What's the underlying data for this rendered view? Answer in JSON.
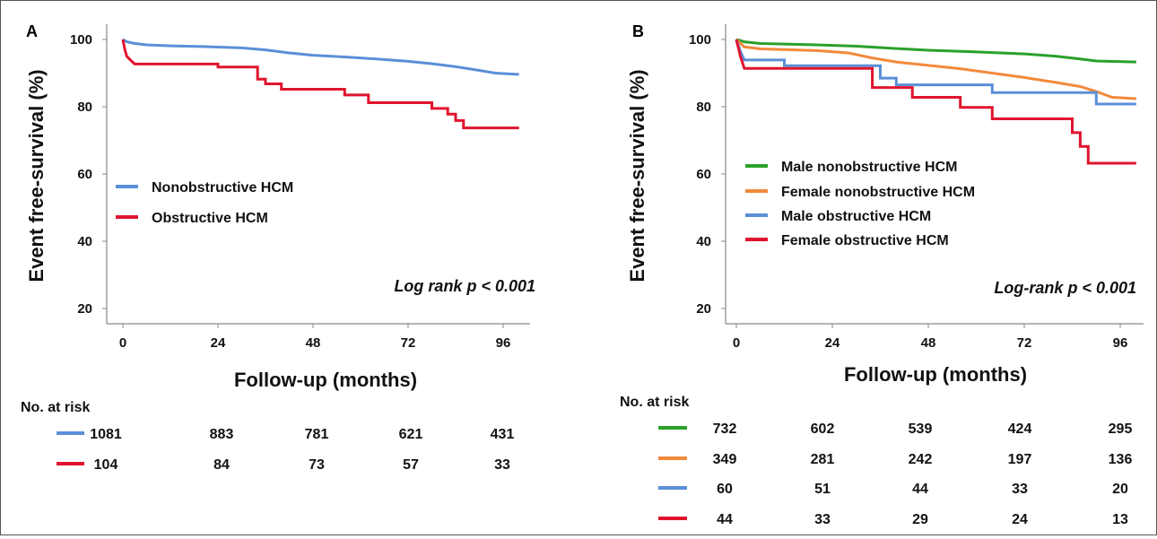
{
  "chart_data": [
    {
      "type": "line",
      "step": true,
      "panel": "A",
      "ylabel": "Event free-survival (%)",
      "xlabel": "Follow-up (months)",
      "xticks": [
        0,
        24,
        48,
        72,
        96
      ],
      "yticks": [
        20,
        40,
        60,
        80,
        100
      ],
      "annotation": "Log rank p < 0.001",
      "legend_position": "left-middle",
      "series": [
        {
          "name": "Nonobstructive HCM",
          "color": "#5b8fd8",
          "points": [
            [
              0,
              100
            ],
            [
              1,
              99.3
            ],
            [
              3,
              98.8
            ],
            [
              6,
              98.4
            ],
            [
              12,
              98.1
            ],
            [
              20,
              97.9
            ],
            [
              30,
              97.5
            ],
            [
              36,
              96.9
            ],
            [
              42,
              96
            ],
            [
              48,
              95.3
            ],
            [
              56,
              94.8
            ],
            [
              64,
              94.2
            ],
            [
              72,
              93.5
            ],
            [
              78,
              92.8
            ],
            [
              84,
              91.9
            ],
            [
              90,
              90.8
            ],
            [
              94,
              90
            ],
            [
              100,
              89.6
            ]
          ]
        },
        {
          "name": "Obstructive HCM",
          "color": "#e0142e",
          "points": [
            [
              0,
              100
            ],
            [
              0.5,
              97
            ],
            [
              1,
              95
            ],
            [
              2,
              93.8
            ],
            [
              3,
              92.7
            ],
            [
              24,
              92.7
            ],
            [
              24,
              91.8
            ],
            [
              34,
              91.8
            ],
            [
              34,
              88.2
            ],
            [
              36,
              88.2
            ],
            [
              36,
              86.8
            ],
            [
              40,
              86.8
            ],
            [
              40,
              85.2
            ],
            [
              56,
              85.2
            ],
            [
              56,
              83.5
            ],
            [
              62,
              83.5
            ],
            [
              62,
              81.2
            ],
            [
              78,
              81.2
            ],
            [
              78,
              79.5
            ],
            [
              82,
              79.5
            ],
            [
              82,
              77.8
            ],
            [
              84,
              77.8
            ],
            [
              84,
              75.9
            ],
            [
              86,
              75.9
            ],
            [
              86,
              73.7
            ],
            [
              100,
              73.7
            ]
          ]
        }
      ],
      "risk_table": {
        "title": "No. at risk",
        "rows": [
          {
            "color": "#5b8fd8",
            "values": [
              "1081",
              "883",
              "781",
              "621",
              "431"
            ]
          },
          {
            "color": "#e0142e",
            "values": [
              "104",
              "84",
              "73",
              "57",
              "33"
            ]
          }
        ]
      }
    },
    {
      "type": "line",
      "step": true,
      "panel": "B",
      "ylabel": "Event free-survival (%)",
      "xlabel": "Follow-up (months)",
      "xticks": [
        0,
        24,
        48,
        72,
        96
      ],
      "yticks": [
        20,
        40,
        60,
        80,
        100
      ],
      "annotation": "Log-rank p < 0.001",
      "legend_position": "left-middle",
      "series": [
        {
          "name": "Male nonobstructive HCM",
          "color": "#2aa02a",
          "points": [
            [
              0,
              100
            ],
            [
              2,
              99.3
            ],
            [
              6,
              98.8
            ],
            [
              20,
              98.4
            ],
            [
              30,
              98
            ],
            [
              40,
              97.3
            ],
            [
              48,
              96.8
            ],
            [
              60,
              96.3
            ],
            [
              72,
              95.7
            ],
            [
              80,
              95
            ],
            [
              86,
              94.2
            ],
            [
              90,
              93.6
            ],
            [
              100,
              93.3
            ]
          ]
        },
        {
          "name": "Female nonobstructive HCM",
          "color": "#f28a3c",
          "points": [
            [
              0,
              100
            ],
            [
              2,
              97.8
            ],
            [
              6,
              97.2
            ],
            [
              20,
              96.7
            ],
            [
              28,
              96
            ],
            [
              34,
              94.5
            ],
            [
              40,
              93.3
            ],
            [
              48,
              92.3
            ],
            [
              56,
              91.3
            ],
            [
              64,
              90
            ],
            [
              72,
              88.7
            ],
            [
              80,
              87.2
            ],
            [
              86,
              86
            ],
            [
              90,
              84.5
            ],
            [
              94,
              82.8
            ],
            [
              100,
              82.4
            ]
          ]
        },
        {
          "name": "Male obstructive HCM",
          "color": "#5b8fd8",
          "points": [
            [
              0,
              100
            ],
            [
              1,
              96.5
            ],
            [
              2,
              93.9
            ],
            [
              12,
              93.9
            ],
            [
              12,
              92.2
            ],
            [
              36,
              92.2
            ],
            [
              36,
              88.5
            ],
            [
              40,
              88.5
            ],
            [
              40,
              86.5
            ],
            [
              64,
              86.5
            ],
            [
              64,
              84.2
            ],
            [
              90,
              84.2
            ],
            [
              90,
              80.8
            ],
            [
              100,
              80.8
            ]
          ]
        },
        {
          "name": "Female obstructive HCM",
          "color": "#e0142e",
          "points": [
            [
              0,
              100
            ],
            [
              1,
              95
            ],
            [
              2,
              91.4
            ],
            [
              34,
              91.4
            ],
            [
              34,
              85.7
            ],
            [
              44,
              85.7
            ],
            [
              44,
              82.8
            ],
            [
              56,
              82.8
            ],
            [
              56,
              79.8
            ],
            [
              64,
              79.8
            ],
            [
              64,
              76.4
            ],
            [
              84,
              76.4
            ],
            [
              84,
              72.3
            ],
            [
              86,
              72.3
            ],
            [
              86,
              68.2
            ],
            [
              88,
              68.2
            ],
            [
              88,
              63.2
            ],
            [
              100,
              63.2
            ]
          ]
        }
      ],
      "risk_table": {
        "title": "No. at risk",
        "rows": [
          {
            "color": "#2aa02a",
            "values": [
              "732",
              "602",
              "539",
              "424",
              "295"
            ]
          },
          {
            "color": "#f28a3c",
            "values": [
              "349",
              "281",
              "242",
              "197",
              "136"
            ]
          },
          {
            "color": "#5b8fd8",
            "values": [
              "60",
              "51",
              "44",
              "33",
              "20"
            ]
          },
          {
            "color": "#e0142e",
            "values": [
              "44",
              "33",
              "29",
              "24",
              "13"
            ]
          }
        ]
      }
    }
  ]
}
